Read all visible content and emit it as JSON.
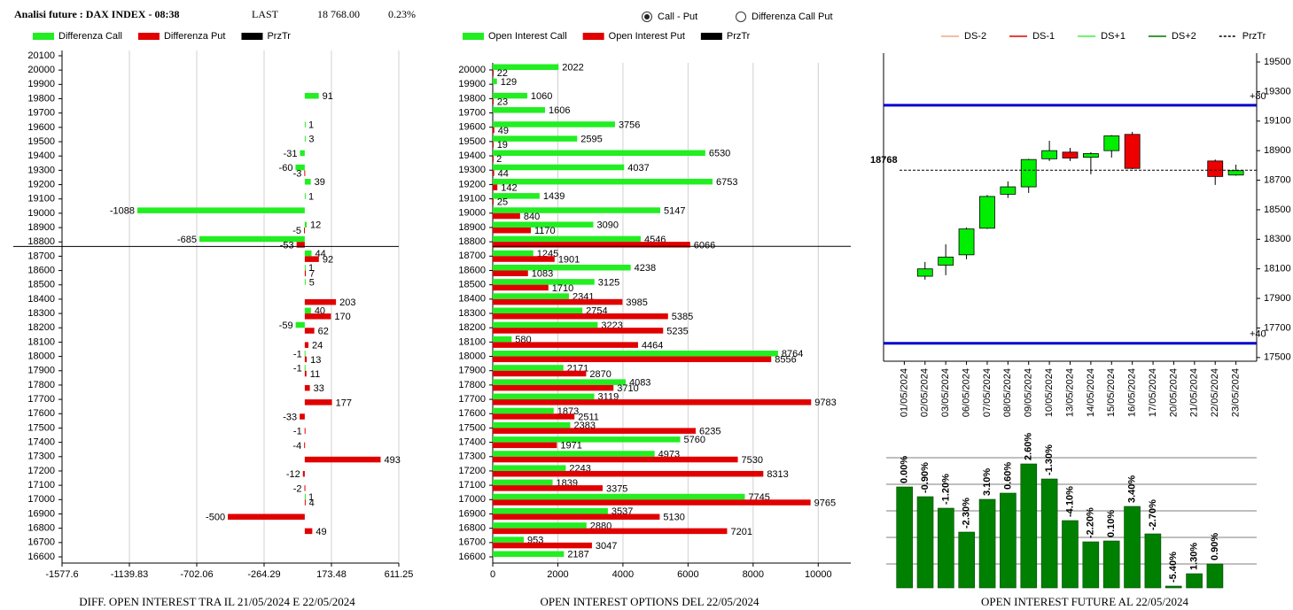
{
  "header": {
    "title": "Analisi future : DAX INDEX - 08:38",
    "last_label": "LAST",
    "last": "18 768.00",
    "change": "0.23%"
  },
  "radio": [
    {
      "label": "Call - Put",
      "selected": true
    },
    {
      "label": "Differenza Call Put",
      "selected": false
    }
  ],
  "chart_data": [
    {
      "type": "hbar",
      "title": "DIFF. OPEN INTEREST TRA IL 21/05/2024 E 22/05/2024",
      "categories": [
        "20100",
        "20000",
        "19900",
        "19800",
        "19700",
        "19600",
        "19500",
        "19400",
        "19300",
        "19200",
        "19100",
        "19000",
        "18900",
        "18800",
        "18700",
        "18600",
        "18500",
        "18400",
        "18300",
        "18200",
        "18100",
        "18000",
        "17900",
        "17800",
        "17700",
        "17600",
        "17500",
        "17400",
        "17300",
        "17200",
        "17100",
        "17000",
        "16900",
        "16800",
        "16700",
        "16600"
      ],
      "series": [
        {
          "name": "Differenza Call",
          "color": "#22ee22",
          "values": [
            null,
            null,
            null,
            91,
            null,
            1,
            3,
            -31,
            -60,
            39,
            1,
            -1088,
            12,
            -685,
            44,
            1,
            5,
            null,
            40,
            -59,
            null,
            -1,
            -1,
            null,
            null,
            null,
            null,
            null,
            null,
            null,
            null,
            1,
            null,
            null,
            null,
            null
          ]
        },
        {
          "name": "Differenza Put",
          "color": "#e00000",
          "values": [
            null,
            null,
            null,
            null,
            null,
            null,
            null,
            null,
            -3,
            null,
            null,
            null,
            -5,
            -53,
            92,
            7,
            null,
            203,
            170,
            62,
            24,
            13,
            11,
            33,
            177,
            -33,
            -1,
            -4,
            493,
            -12,
            -2,
            4,
            -500,
            49,
            null,
            null
          ]
        }
      ],
      "reference": {
        "name": "PrzTr",
        "value": 18768,
        "color": "#000000"
      },
      "xlim": [
        -1577.6,
        611.25
      ],
      "xticks": [
        -1577.6,
        -1139.83,
        -702.06,
        -264.29,
        173.48,
        611.25
      ],
      "grid": true
    },
    {
      "type": "hbar",
      "title": "OPEN INTEREST OPTIONS DEL 22/05/2024",
      "categories": [
        "20000",
        "19900",
        "19800",
        "19700",
        "19600",
        "19500",
        "19400",
        "19300",
        "19200",
        "19100",
        "19000",
        "18900",
        "18800",
        "18700",
        "18600",
        "18500",
        "18400",
        "18300",
        "18200",
        "18100",
        "18000",
        "17900",
        "17800",
        "17700",
        "17600",
        "17500",
        "17400",
        "17300",
        "17200",
        "17100",
        "17000",
        "16900",
        "16800",
        "16700",
        "16600"
      ],
      "series": [
        {
          "name": "Open Interest Call",
          "color": "#22ee22",
          "values": [
            2022,
            129,
            1060,
            1606,
            3756,
            2595,
            6530,
            4037,
            6753,
            1439,
            5147,
            3090,
            4546,
            1245,
            4238,
            3125,
            2341,
            2754,
            3223,
            580,
            8764,
            2171,
            4083,
            3119,
            1873,
            2383,
            5760,
            4973,
            2243,
            1839,
            7745,
            3537,
            2880,
            953,
            2187
          ]
        },
        {
          "name": "Open Interest Put",
          "color": "#e00000",
          "values": [
            22,
            null,
            23,
            null,
            49,
            19,
            2,
            44,
            142,
            25,
            840,
            1170,
            6066,
            1901,
            1083,
            1710,
            3985,
            5385,
            5235,
            4464,
            8556,
            2870,
            3710,
            9783,
            2511,
            6235,
            1971,
            7530,
            8313,
            3375,
            9765,
            5130,
            7201,
            3047,
            null
          ]
        }
      ],
      "reference": {
        "name": "PrzTr",
        "value": 18768,
        "color": "#000000"
      },
      "xlim": [
        0,
        11000
      ],
      "xticks": [
        0,
        2000,
        4000,
        6000,
        8000,
        10000
      ],
      "grid": true
    },
    {
      "type": "candlestick",
      "title": "OPEN INTEREST FUTURE AL 22/05/2024",
      "categories": [
        "01/05/2024",
        "02/05/2024",
        "03/05/2024",
        "06/05/2024",
        "07/05/2024",
        "08/05/2024",
        "09/05/2024",
        "10/05/2024",
        "13/05/2024",
        "14/05/2024",
        "15/05/2024",
        "16/05/2024",
        "17/05/2024",
        "20/05/2024",
        "21/05/2024",
        "22/05/2024",
        "23/05/2024"
      ],
      "open": [
        null,
        18050,
        18125,
        18195,
        18375,
        18605,
        18655,
        18845,
        18890,
        18855,
        18900,
        19010,
        null,
        null,
        null,
        18830,
        18735
      ],
      "high": [
        null,
        18147,
        18266,
        18380,
        18600,
        18692,
        18845,
        18967,
        18919,
        18890,
        19005,
        19027,
        null,
        null,
        null,
        18840,
        18805
      ],
      "low": [
        null,
        18027,
        18057,
        18165,
        18370,
        18580,
        18614,
        18830,
        18830,
        18740,
        18853,
        18775,
        null,
        null,
        null,
        18668,
        18730
      ],
      "close": [
        null,
        18100,
        18180,
        18370,
        18590,
        18655,
        18840,
        18900,
        18850,
        18880,
        19000,
        18780,
        null,
        null,
        null,
        18725,
        18765
      ],
      "up_color": "#00ee00",
      "down_color": "#ee0000",
      "legend": [
        {
          "name": "DS-2",
          "color": "#f4a582"
        },
        {
          "name": "DS-1",
          "color": "#e00000"
        },
        {
          "name": "DS+1",
          "color": "#44ee44"
        },
        {
          "name": "DS+2",
          "color": "#007700"
        },
        {
          "name": "PrzTr",
          "color": "#000000",
          "dashed": true
        }
      ],
      "levels": [
        {
          "value": 19207,
          "label": "+80",
          "color": "#0000cc"
        },
        {
          "value": 17596,
          "label": "+40",
          "color": "#0000cc"
        }
      ],
      "price": 18768,
      "ylim": [
        17475,
        19560
      ],
      "yticks": [
        17500,
        17700,
        17900,
        18100,
        18300,
        18500,
        18700,
        18900,
        19100,
        19300,
        19500
      ]
    },
    {
      "type": "bar",
      "values": [
        114,
        103,
        90,
        63,
        100,
        107,
        140,
        123,
        76,
        52,
        53,
        92,
        61,
        2,
        16,
        27
      ],
      "labels": [
        "0.00%",
        "-0.90%",
        "-1.20%",
        "-2.30%",
        "3.10%",
        "0.60%",
        "2.60%",
        "-1.30%",
        "-4.10%",
        "-2.20%",
        "0.10%",
        "3.40%",
        "-2.70%",
        "-5.40%",
        "1.30%",
        "0.90%"
      ],
      "color": "#008000",
      "ylim": [
        0,
        150
      ],
      "yticks": [
        27,
        57,
        87,
        117,
        147
      ],
      "grid": true
    }
  ]
}
